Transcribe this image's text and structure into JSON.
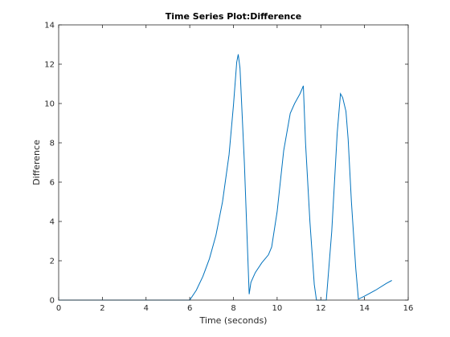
{
  "chart_data": {
    "type": "line",
    "title": "Time Series Plot:Difference",
    "xlabel": "Time (seconds)",
    "ylabel": "Difference",
    "xlim": [
      0,
      16
    ],
    "ylim": [
      0,
      14
    ],
    "xticks": [
      0,
      2,
      4,
      6,
      8,
      10,
      12,
      14,
      16
    ],
    "yticks": [
      0,
      2,
      4,
      6,
      8,
      10,
      12,
      14
    ],
    "grid": false,
    "series": [
      {
        "color": "#0072bd",
        "x": [
          0,
          6.0,
          6.3,
          6.6,
          6.9,
          7.2,
          7.5,
          7.8,
          8.0,
          8.15,
          8.22,
          8.3,
          8.5,
          8.72,
          8.8,
          9.0,
          9.3,
          9.6,
          9.75,
          10.0,
          10.3,
          10.6,
          10.8,
          10.95,
          11.05,
          11.2,
          11.3,
          11.5,
          11.7,
          11.8,
          12.25,
          12.5,
          12.75,
          12.9,
          13.0,
          13.15,
          13.25,
          13.4,
          13.6,
          13.72,
          14.0,
          14.5,
          15.0,
          15.25
        ],
        "y": [
          0,
          0,
          0.5,
          1.2,
          2.1,
          3.3,
          5.0,
          7.4,
          9.9,
          12.1,
          12.5,
          11.8,
          7.0,
          0.3,
          0.9,
          1.4,
          1.9,
          2.3,
          2.7,
          4.5,
          7.6,
          9.5,
          10.0,
          10.3,
          10.5,
          10.9,
          8.0,
          4.0,
          0.8,
          0,
          0,
          3.5,
          8.5,
          10.5,
          10.3,
          9.6,
          8.2,
          5.0,
          1.6,
          0.05,
          0.2,
          0.5,
          0.85,
          1.0
        ]
      }
    ]
  }
}
